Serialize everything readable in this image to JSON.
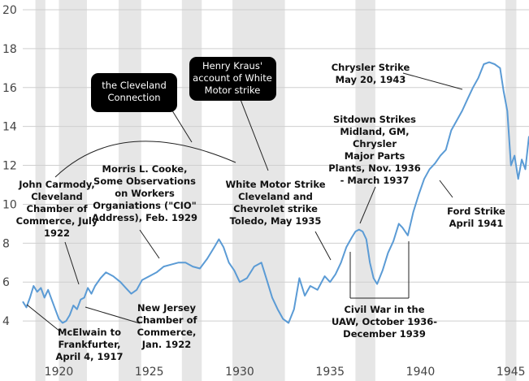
{
  "chart_data": {
    "type": "line",
    "title": "",
    "xlabel": "",
    "ylabel": "",
    "xlim": [
      1918.0,
      1946.0
    ],
    "ylim": [
      2,
      20
    ],
    "grid": "horizontal",
    "x_ticks": [
      1920,
      1925,
      1930,
      1935,
      1940,
      1945
    ],
    "y_ticks": [
      4,
      6,
      8,
      10,
      12,
      14,
      16,
      18,
      20
    ],
    "recession_shading": [
      [
        1918.7,
        1919.25
      ],
      [
        1920.0,
        1921.55
      ],
      [
        1923.3,
        1924.55
      ],
      [
        1926.8,
        1927.9
      ],
      [
        1929.6,
        1932.5
      ],
      [
        1936.4,
        1937.5
      ],
      [
        1944.7,
        1945.3
      ]
    ],
    "series": [
      {
        "color": "#5b9bd5",
        "x": [
          1918.0,
          1918.2,
          1918.4,
          1918.6,
          1918.8,
          1919.0,
          1919.2,
          1919.4,
          1919.6,
          1919.8,
          1920.0,
          1920.2,
          1920.4,
          1920.6,
          1920.8,
          1921.0,
          1921.2,
          1921.4,
          1921.6,
          1921.8,
          1922.0,
          1922.3,
          1922.6,
          1923.0,
          1923.4,
          1923.7,
          1924.0,
          1924.3,
          1924.6,
          1925.0,
          1925.4,
          1925.8,
          1926.2,
          1926.6,
          1927.0,
          1927.4,
          1927.8,
          1928.2,
          1928.6,
          1928.85,
          1929.1,
          1929.4,
          1929.7,
          1930.0,
          1930.4,
          1930.8,
          1931.2,
          1931.5,
          1931.8,
          1932.1,
          1932.4,
          1932.7,
          1933.0,
          1933.3,
          1933.6,
          1933.9,
          1934.3,
          1934.7,
          1935.0,
          1935.3,
          1935.6,
          1935.9,
          1936.2,
          1936.4,
          1936.6,
          1936.8,
          1937.0,
          1937.2,
          1937.4,
          1937.6,
          1937.9,
          1938.2,
          1938.5,
          1938.8,
          1939.0,
          1939.3,
          1939.6,
          1939.9,
          1940.2,
          1940.5,
          1940.8,
          1941.1,
          1941.4,
          1941.7,
          1942.0,
          1942.3,
          1942.6,
          1942.9,
          1943.2,
          1943.5,
          1943.8,
          1944.1,
          1944.4,
          1944.6,
          1944.8,
          1945.0,
          1945.2,
          1945.4,
          1945.6,
          1945.8,
          1946.0
        ],
        "y": [
          5.0,
          4.7,
          5.2,
          5.8,
          5.5,
          5.7,
          5.2,
          5.6,
          5.1,
          4.6,
          4.1,
          3.9,
          4.0,
          4.3,
          4.8,
          4.6,
          5.1,
          5.2,
          5.7,
          5.4,
          5.8,
          6.2,
          6.5,
          6.3,
          6.0,
          5.7,
          5.4,
          5.6,
          6.1,
          6.3,
          6.5,
          6.8,
          6.9,
          7.0,
          7.0,
          6.8,
          6.7,
          7.2,
          7.8,
          8.2,
          7.8,
          7.0,
          6.6,
          6.0,
          6.2,
          6.8,
          7.0,
          6.1,
          5.2,
          4.6,
          4.1,
          3.9,
          4.6,
          6.2,
          5.3,
          5.8,
          5.6,
          6.3,
          6.0,
          6.4,
          7.0,
          7.8,
          8.3,
          8.6,
          8.7,
          8.6,
          8.2,
          7.0,
          6.2,
          5.9,
          6.6,
          7.5,
          8.1,
          9.0,
          8.8,
          8.4,
          9.6,
          10.5,
          11.3,
          11.8,
          12.1,
          12.5,
          12.8,
          13.8,
          14.3,
          14.8,
          15.4,
          16.0,
          16.5,
          17.2,
          17.3,
          17.2,
          17.0,
          15.8,
          14.8,
          12.0,
          12.5,
          11.3,
          12.3,
          11.8,
          13.5
        ]
      }
    ],
    "annotations": [
      {
        "lines": [
          "John Carmody,",
          "Cleveland",
          "Chamber of",
          "Commerce, July",
          "1922"
        ]
      },
      {
        "lines": [
          "McElwain to",
          "Frankfurter,",
          "April 4, 1917"
        ]
      },
      {
        "lines": [
          "New Jersey",
          "Chamber of",
          "Commerce,",
          "Jan. 1922"
        ]
      },
      {
        "lines": [
          "Morris L. Cooke,",
          "Some Observations",
          "on Workers",
          "Organiations (\"CIO\"",
          "Address), Feb. 1929"
        ]
      },
      {
        "lines": [
          "White Motor Strike",
          "Cleveland and",
          "Chevrolet strike",
          "Toledo, May 1935"
        ]
      },
      {
        "lines": [
          "Sitdown Strikes",
          "Midland, GM,",
          "Chrysler",
          "Major Parts",
          "Plants, Nov. 1936",
          "- March 1937"
        ]
      },
      {
        "lines": [
          "Chrysler Strike",
          "May 20, 1943"
        ]
      },
      {
        "lines": [
          "Ford Strike",
          "April 1941"
        ]
      },
      {
        "lines": [
          "Civil War in the",
          "UAW, October 1936-",
          "December 1939"
        ]
      }
    ],
    "callout_boxes": [
      {
        "lines": [
          "the Cleveland",
          "Connection"
        ]
      },
      {
        "lines": [
          "Henry Kraus'",
          "account of White",
          "Motor strike"
        ]
      }
    ]
  }
}
